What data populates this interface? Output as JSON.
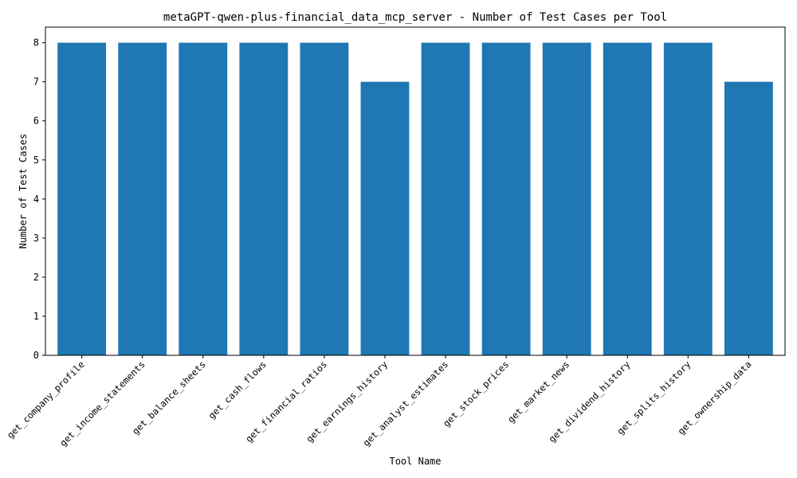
{
  "chart_data": {
    "type": "bar",
    "title": "metaGPT-qwen-plus-financial_data_mcp_server - Number of Test Cases per Tool",
    "xlabel": "Tool Name",
    "ylabel": "Number of Test Cases",
    "categories": [
      "get_company_profile",
      "get_income_statements",
      "get_balance_sheets",
      "get_cash_flows",
      "get_financial_ratios",
      "get_earnings_history",
      "get_analyst_estimates",
      "get_stock_prices",
      "get_market_news",
      "get_dividend_history",
      "get_splits_history",
      "get_ownership_data"
    ],
    "values": [
      8,
      8,
      8,
      8,
      8,
      7,
      8,
      8,
      8,
      8,
      8,
      7
    ],
    "ylim": [
      0,
      8.4
    ],
    "yticks": [
      "0",
      "1",
      "2",
      "3",
      "4",
      "5",
      "6",
      "7",
      "8"
    ],
    "bar_color": "#1f77b4",
    "grid": false,
    "legend": "none"
  }
}
